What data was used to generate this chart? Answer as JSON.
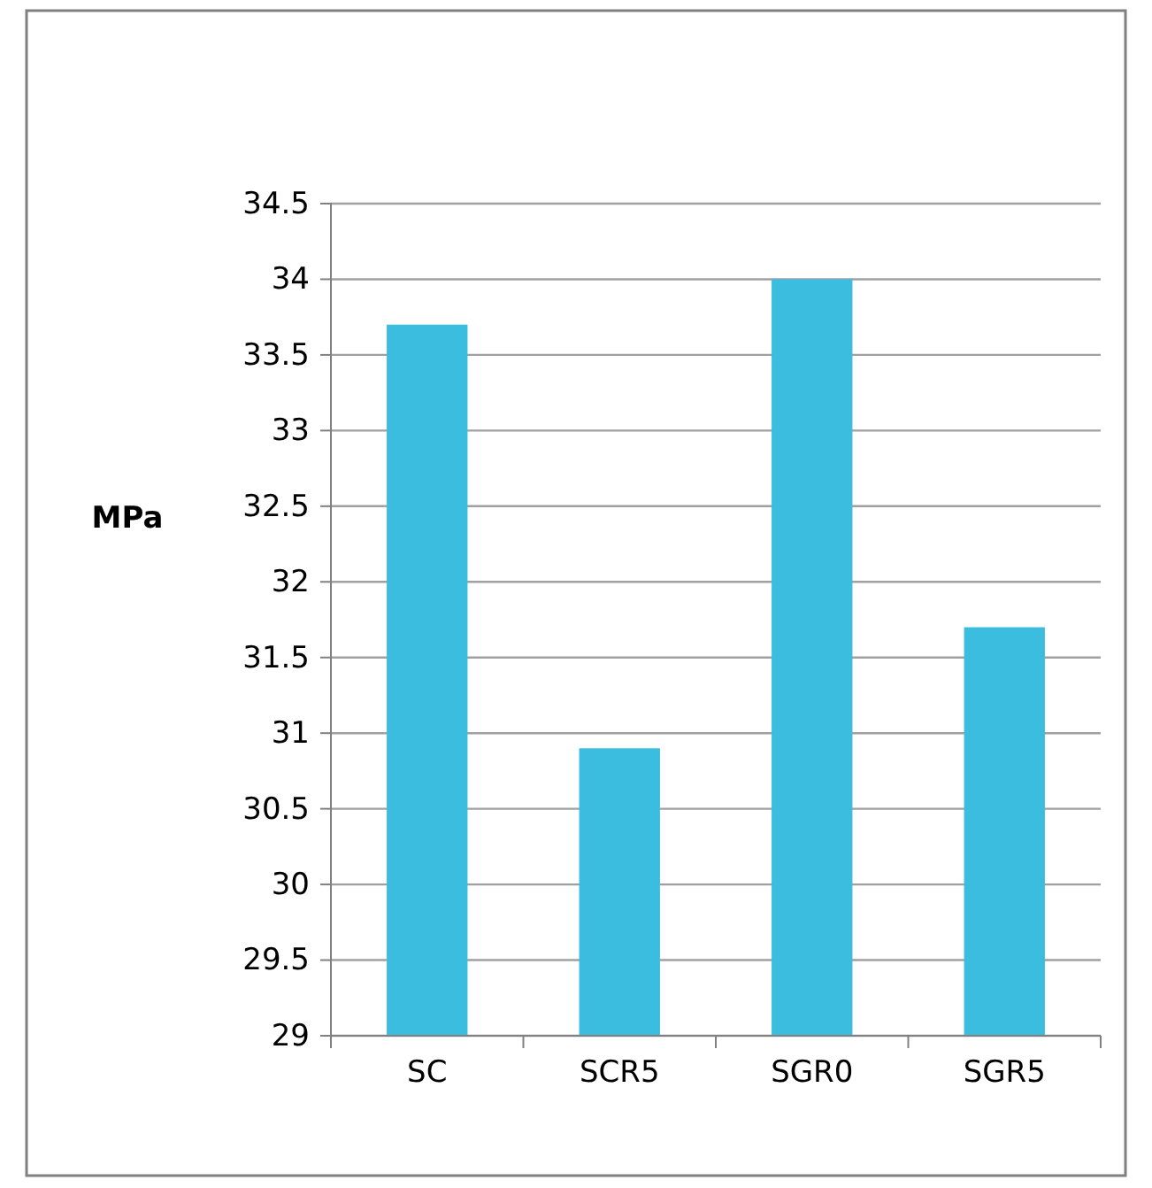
{
  "chart_data": {
    "type": "bar",
    "ylabel": "MPa",
    "categories": [
      "SC",
      "SCR5",
      "SGR0",
      "SGR5"
    ],
    "values": [
      33.7,
      30.9,
      34.0,
      31.7
    ],
    "color": "#3bbde0",
    "ylim": [
      29,
      34.5
    ],
    "yticks": [
      29,
      29.5,
      30,
      30.5,
      31,
      31.5,
      32,
      32.5,
      33,
      33.5,
      34,
      34.5
    ],
    "grid": "y"
  }
}
